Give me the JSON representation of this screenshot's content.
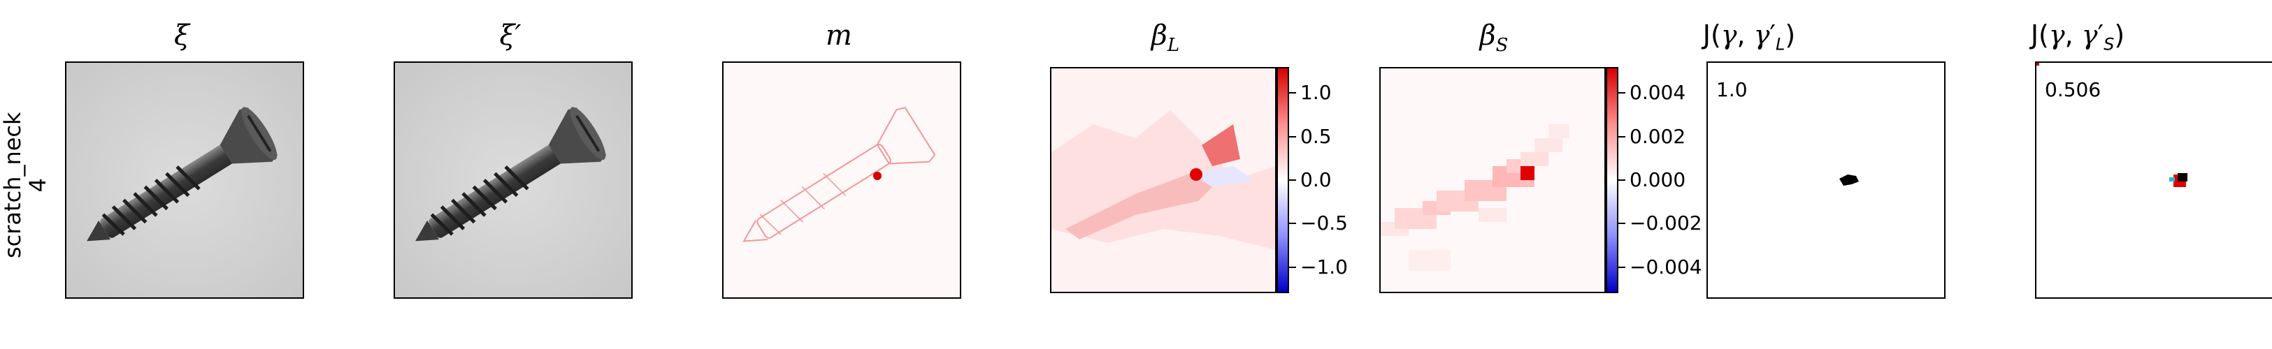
{
  "row_label": {
    "line1": "scratch_neck",
    "line2": "4"
  },
  "panels": [
    {
      "title": "ξ"
    },
    {
      "title": "ξ′"
    },
    {
      "title": "m"
    },
    {
      "title": "β_L"
    },
    {
      "title": "β_S"
    },
    {
      "title": "J(γ, γ′_L)",
      "score": "1.0"
    },
    {
      "title": "J(γ, γ′_S)",
      "score": "0.506"
    }
  ],
  "chart_data": [
    {
      "type": "heatmap",
      "title": "β_L",
      "colorbar_ticks": [
        "1.0",
        "0.5",
        "0.0",
        "−0.5",
        "−1.0"
      ],
      "colorbar_values": [
        1.0,
        0.5,
        0.0,
        -0.5,
        -1.0
      ],
      "colorbar_range": [
        -1.3,
        1.3
      ],
      "colormap": "bwr"
    },
    {
      "type": "heatmap",
      "title": "β_S",
      "colorbar_ticks": [
        "0.004",
        "0.002",
        "0.000",
        "−0.002",
        "−0.004"
      ],
      "colorbar_values": [
        0.004,
        0.002,
        0.0,
        -0.002,
        -0.004
      ],
      "colorbar_range": [
        -0.0052,
        0.0052
      ],
      "colormap": "bwr"
    }
  ],
  "colors": {
    "red": "#e00000",
    "blue": "#0000d0",
    "cyan": "#20c0d0",
    "screw_gray": "#4a4a4a",
    "background_gray": "#d6d6d6"
  }
}
